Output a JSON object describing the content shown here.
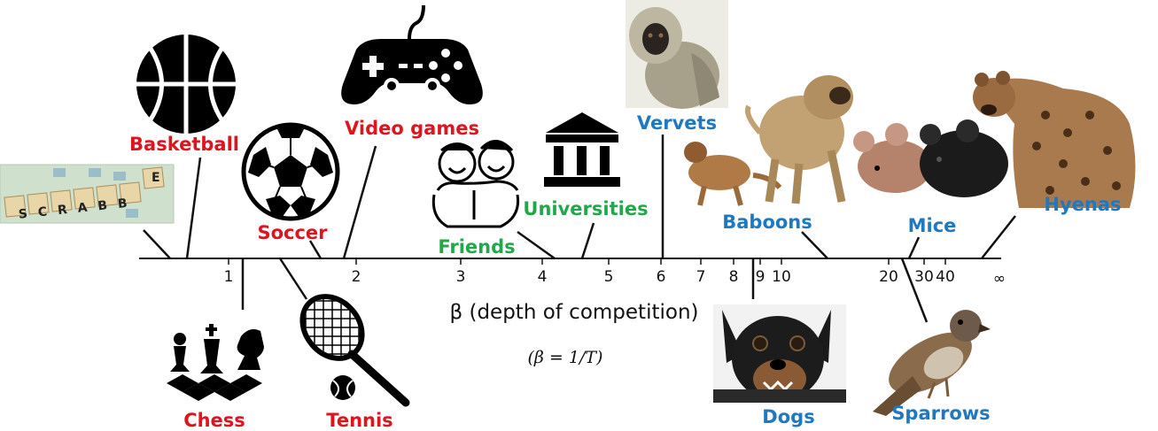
{
  "colors": {
    "game": "#e0141e",
    "human": "#22a84a",
    "animal": "#1f78c0",
    "axis": "#111111"
  },
  "axis": {
    "title": "β (depth of competition)",
    "formula": "(β = 1/T)",
    "ticks": [
      "1",
      "2",
      "3",
      "4",
      "5",
      "6",
      "7",
      "8",
      "9",
      "10",
      "20",
      "30",
      "40",
      "∞"
    ]
  },
  "labels": {
    "scrabble": "SCRABBLE",
    "basketball": "Basketball",
    "soccer": "Soccer",
    "video_games": "Video games",
    "chess": "Chess",
    "tennis": "Tennis",
    "friends": "Friends",
    "universities": "Universities",
    "vervets": "Vervets",
    "baboons": "Baboons",
    "dogs": "Dogs",
    "mice": "Mice",
    "sparrows": "Sparrows",
    "hyenas": "Hyenas"
  },
  "icons": {
    "scrabble": "scrabble-tiles-photo",
    "basketball": "basketball-icon",
    "soccer": "soccer-ball-icon",
    "video_games": "game-controller-icon",
    "chess": "chess-pieces-icon",
    "tennis": "tennis-racket-icon",
    "friends": "friends-icon",
    "universities": "university-building-icon",
    "vervets": "vervet-monkey-photo",
    "baboons": "baboons-photo",
    "dogs": "dog-photo",
    "mice": "mice-photo",
    "sparrows": "sparrow-photo",
    "hyenas": "hyena-photo"
  }
}
